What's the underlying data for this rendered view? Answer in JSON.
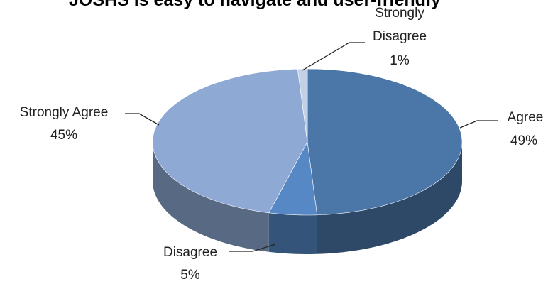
{
  "chart_data": {
    "type": "pie3d",
    "title": "JOSHS is easy to navigate and user-friendly",
    "categories": [
      "Agree",
      "Disagree",
      "Strongly Agree",
      "Strongly Disagree"
    ],
    "values": [
      49,
      5,
      45,
      1
    ],
    "value_labels": [
      "49%",
      "5%",
      "45%",
      "1%"
    ],
    "colors": [
      "#4a76a8",
      "#5588c4",
      "#8eaad4",
      "#c3d1e6"
    ]
  }
}
